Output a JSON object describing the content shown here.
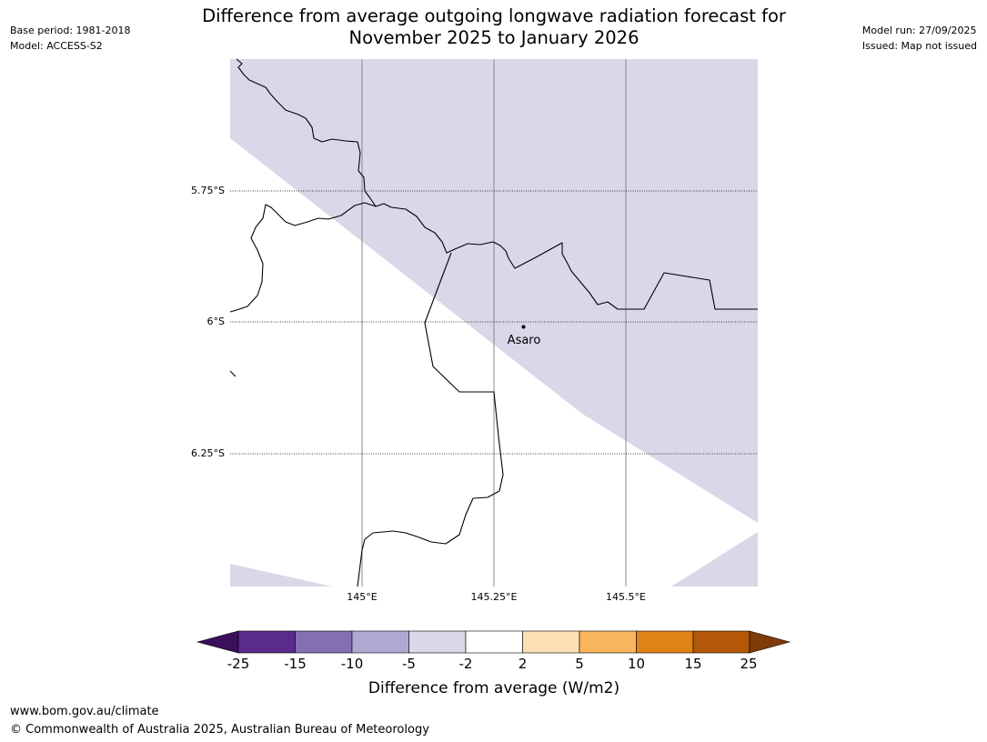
{
  "header": {
    "title_line1": "Difference from average outgoing longwave radiation forecast for",
    "title_line2": "November 2025 to January 2026",
    "base_period": "Base period: 1981-2018",
    "model": "Model: ACCESS-S2",
    "model_run": "Model run: 27/09/2025",
    "issued": "Issued: Map not issued"
  },
  "map": {
    "lat_labels": [
      "5.75°S",
      "6°S",
      "6.25°S"
    ],
    "lon_labels": [
      "145°E",
      "145.25°E",
      "145.5°E"
    ],
    "place_name": "Asaro",
    "colors": {
      "band_minus5_to_minus2": "#d8d8e9",
      "neutral": "#ffffff",
      "border": "#000000",
      "meridian": "#888888"
    }
  },
  "legend": {
    "title": "Difference from average (W/m2)",
    "ticks": [
      "-25",
      "-15",
      "-10",
      "-5",
      "-2",
      "2",
      "5",
      "10",
      "15",
      "25"
    ],
    "colors": [
      "#3b0f5c",
      "#5a2a8c",
      "#8270b0",
      "#b0a8d2",
      "#d8d8e9",
      "#ffffff",
      "#fde0b4",
      "#f9b45e",
      "#e08214",
      "#b35806",
      "#7f3b08"
    ]
  },
  "footer": {
    "url": "www.bom.gov.au/climate",
    "copyright": "© Commonwealth of Australia 2025, Australian Bureau of Meteorology"
  }
}
